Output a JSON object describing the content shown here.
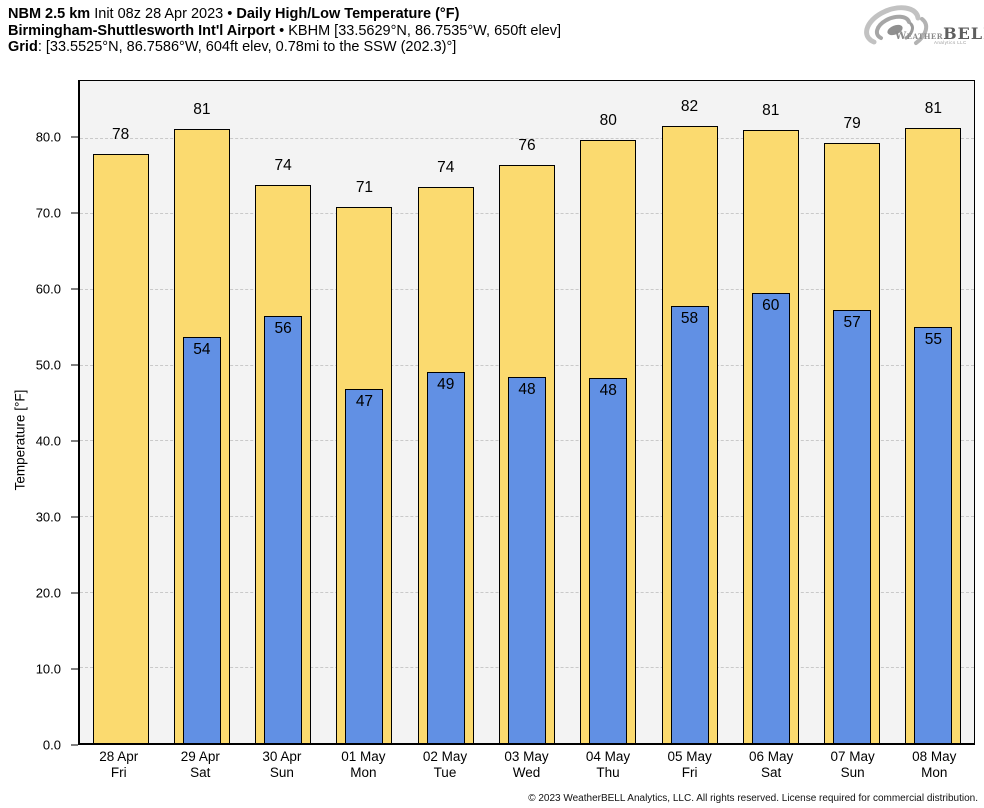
{
  "header": {
    "l1a": "NBM 2.5 km",
    "l1b": " Init 08z 28 Apr 2023 • ",
    "l1c": "Daily High/Low Temperature (°F)",
    "l2a": "Birmingham-Shuttlesworth Int'l Airport",
    "l2b": " • KBHM [33.5629°N, 86.7535°W, 650ft elev]",
    "l3a": "Grid",
    "l3b": ": [33.5525°N, 86.7586°W, 604ft elev, 0.78mi to the SSW (202.3)°]"
  },
  "logo": {
    "brand_weather": "Weather",
    "brand_bell": "BELL",
    "brand_sub": "Analytics LLC"
  },
  "footer": {
    "copyright": "© 2023 WeatherBELL Analytics, LLC. All rights reserved. License required for commercial distribution."
  },
  "chart_data": {
    "type": "bar",
    "title": "NBM 2.5 km Daily High/Low Temperature (°F) — Birmingham-Shuttlesworth Int'l Airport (KBHM)",
    "ylabel": "Temperature [°F]",
    "ylim": [
      0,
      87.5
    ],
    "yticks": [
      0,
      10,
      20,
      30,
      40,
      50,
      60,
      70,
      80
    ],
    "ytick_labels": [
      "0.0",
      "10.0",
      "20.0",
      "30.0",
      "40.0",
      "50.0",
      "60.0",
      "70.0",
      "80.0"
    ],
    "grid": "horizontal dash-dot",
    "legend": "none",
    "plot_bg": "#f3f3f3",
    "gridline_color": "#c9c9c9",
    "categories": [
      {
        "date": "28 Apr",
        "day": "Fri"
      },
      {
        "date": "29 Apr",
        "day": "Sat"
      },
      {
        "date": "30 Apr",
        "day": "Sun"
      },
      {
        "date": "01 May",
        "day": "Mon"
      },
      {
        "date": "02 May",
        "day": "Tue"
      },
      {
        "date": "03 May",
        "day": "Wed"
      },
      {
        "date": "04 May",
        "day": "Thu"
      },
      {
        "date": "05 May",
        "day": "Fri"
      },
      {
        "date": "06 May",
        "day": "Sat"
      },
      {
        "date": "07 May",
        "day": "Sun"
      },
      {
        "date": "08 May",
        "day": "Mon"
      }
    ],
    "series": [
      {
        "name": "Daily High",
        "color": "#fbda6f",
        "border": "#000000",
        "values": [
          77.8,
          81.2,
          73.8,
          70.8,
          73.5,
          76.4,
          79.7,
          81.6,
          81.0,
          79.3,
          81.3
        ],
        "labels": [
          "78",
          "81",
          "74",
          "71",
          "74",
          "76",
          "80",
          "82",
          "81",
          "79",
          "81"
        ]
      },
      {
        "name": "Daily Low",
        "color": "#6190e4",
        "border": "#000000",
        "values": [
          null,
          53.6,
          56.4,
          46.8,
          49.1,
          48.4,
          48.2,
          57.7,
          59.5,
          57.2,
          55.0
        ],
        "labels": [
          null,
          "54",
          "56",
          "47",
          "49",
          "48",
          "48",
          "58",
          "60",
          "57",
          "55"
        ]
      }
    ]
  }
}
